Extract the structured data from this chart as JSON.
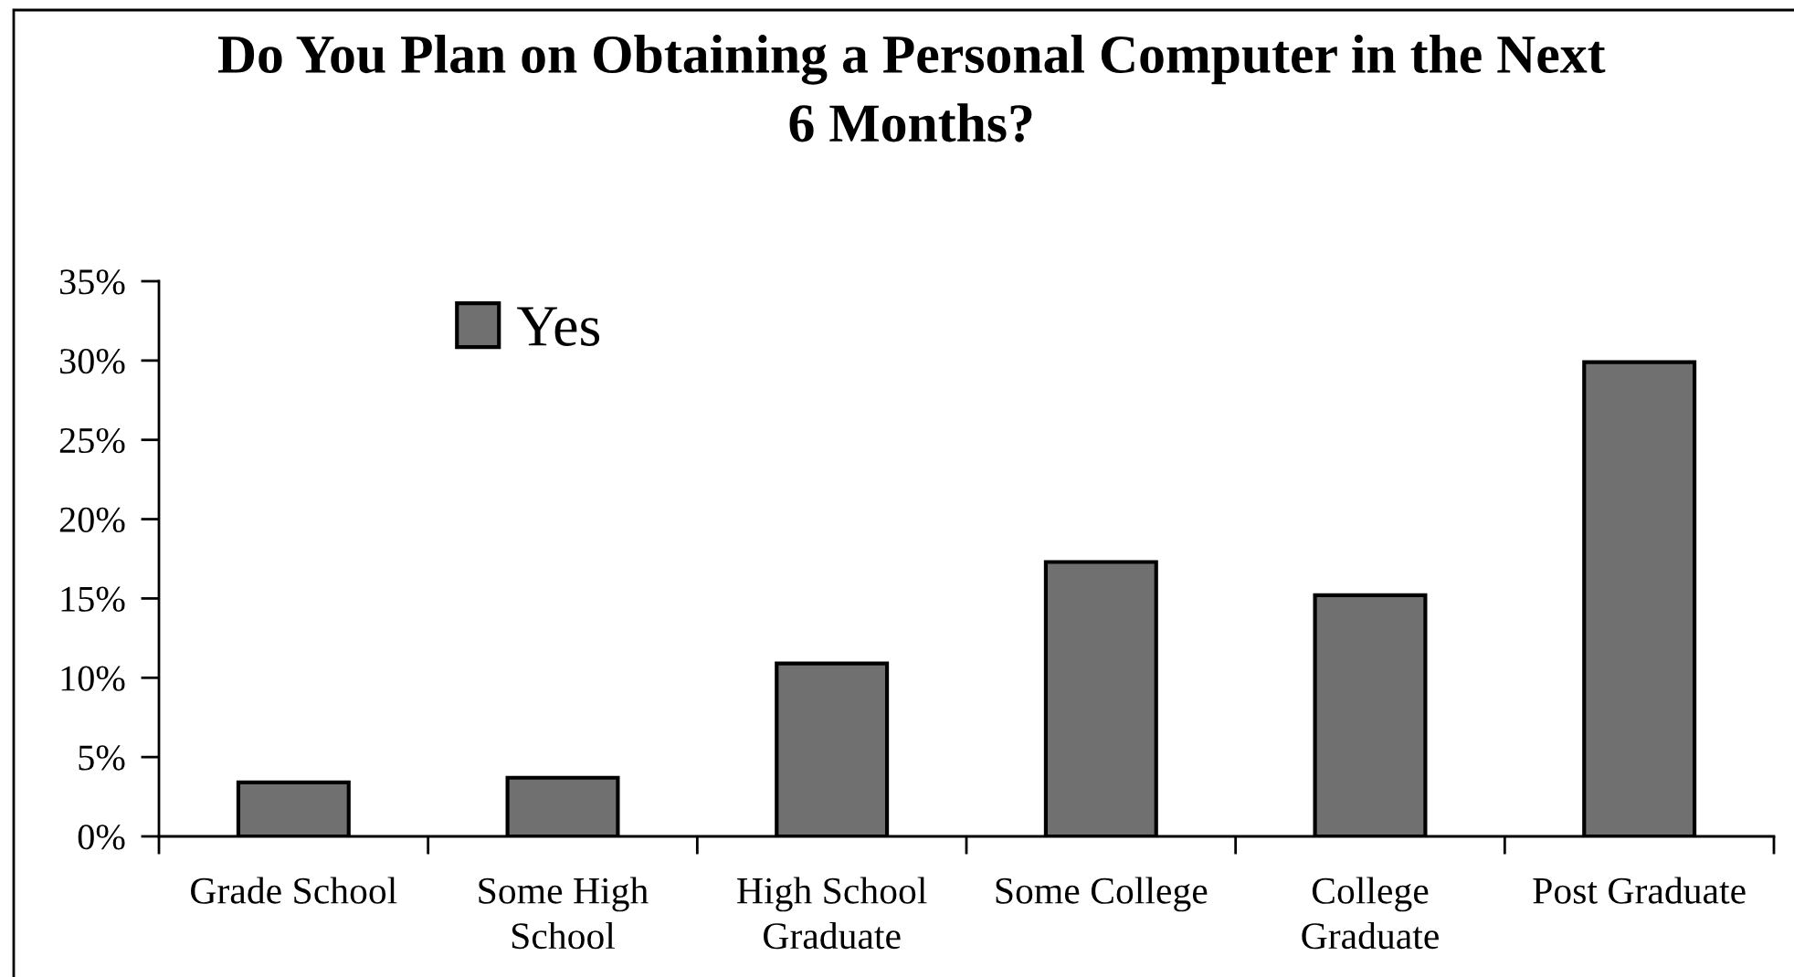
{
  "chart_data": {
    "type": "bar",
    "title": "Do You Plan on Obtaining a Personal Computer in the Next\n6 Months?",
    "categories": [
      "Grade School",
      "Some High\nSchool",
      "High School\nGraduate",
      "Some College",
      "College\nGraduate",
      "Post Graduate"
    ],
    "series": [
      {
        "name": "Yes",
        "color": "#707070",
        "values": [
          3.4,
          3.7,
          10.9,
          17.3,
          15.2,
          29.9
        ]
      }
    ],
    "ylim": [
      0,
      35
    ],
    "yticks": [
      {
        "value": 0,
        "label": "0%"
      },
      {
        "value": 5,
        "label": "5%"
      },
      {
        "value": 10,
        "label": "10%"
      },
      {
        "value": 15,
        "label": "15%"
      },
      {
        "value": 20,
        "label": "20%"
      },
      {
        "value": 25,
        "label": "25%"
      },
      {
        "value": 30,
        "label": "30%"
      },
      {
        "value": 35,
        "label": "35%"
      }
    ],
    "legend": "top left",
    "grid": false
  }
}
